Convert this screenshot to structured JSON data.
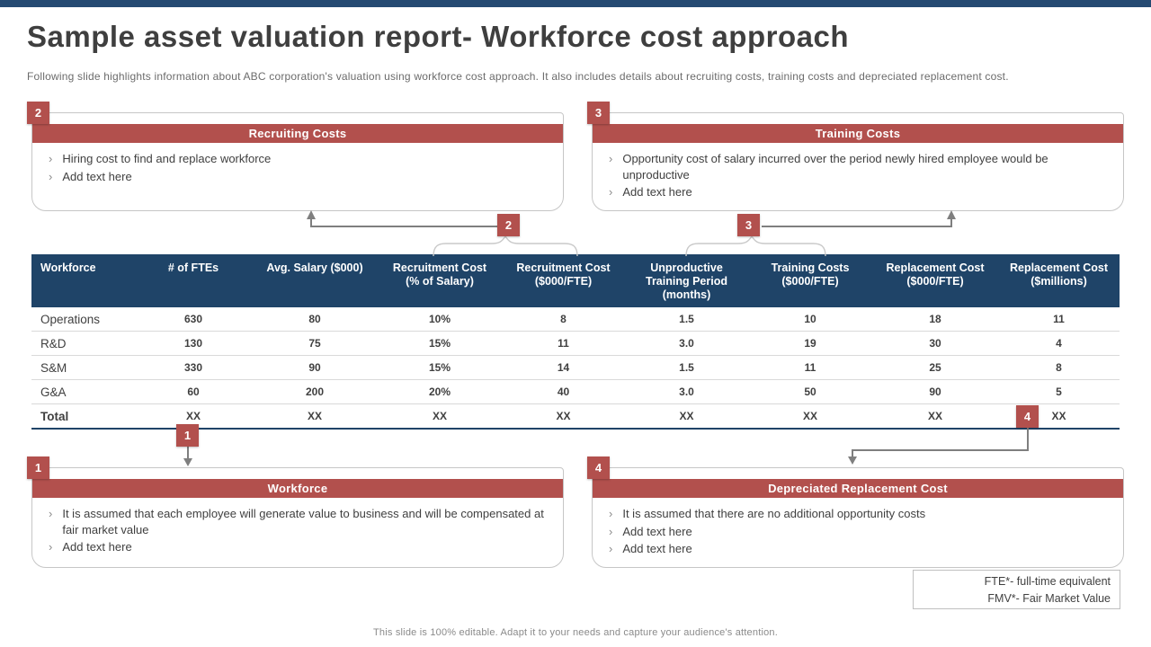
{
  "slide": {
    "title": "Sample asset valuation report- Workforce cost approach",
    "subtitle": "Following slide highlights information about ABC corporation's valuation using workforce cost approach. It also includes details about recruiting costs, training costs and depreciated replacement cost.",
    "footer": "This slide is 100% editable. Adapt it to your needs and capture your audience's attention."
  },
  "colors": {
    "navy": "#1f4468",
    "topbar_navy": "#254a72",
    "red": "#b2504d",
    "body_text": "#404040",
    "connector_gray": "#7f7f7f"
  },
  "bullet_char": "›",
  "callouts": [
    {
      "badge": "1",
      "title": "Workforce",
      "bullets": [
        "It is assumed that each employee will generate value to business and will be compensated at fair market value",
        "Add text here"
      ]
    },
    {
      "badge": "2",
      "title": "Recruiting Costs",
      "bullets": [
        "Hiring cost to find and replace workforce",
        "Add text here"
      ]
    },
    {
      "badge": "3",
      "title": "Training Costs",
      "bullets": [
        "Opportunity cost of salary incurred over the period newly hired employee would be unproductive",
        "Add text here"
      ]
    },
    {
      "badge": "4",
      "title": "Depreciated Replacement Cost",
      "bullets": [
        "It is assumed that there are no additional opportunity costs",
        "Add text here",
        "Add text here"
      ]
    }
  ],
  "connector_badges": {
    "workforce": "1",
    "recruiting": "2",
    "training": "3",
    "depreciated": "4"
  },
  "table": {
    "headers": [
      "Workforce",
      "# of FTEs",
      "Avg. Salary ($000)",
      "Recruitment Cost (% of Salary)",
      "Recruitment Cost ($000/FTE)",
      "Unproductive Training Period (months)",
      "Training Costs ($000/FTE)",
      "Replacement Cost ($000/FTE)",
      "Replacement Cost ($millions)"
    ],
    "rows": [
      [
        "Operations",
        "630",
        "80",
        "10%",
        "8",
        "1.5",
        "10",
        "18",
        "11"
      ],
      [
        "R&D",
        "130",
        "75",
        "15%",
        "11",
        "3.0",
        "19",
        "30",
        "4"
      ],
      [
        "S&M",
        "330",
        "90",
        "15%",
        "14",
        "1.5",
        "11",
        "25",
        "8"
      ],
      [
        "G&A",
        "60",
        "200",
        "20%",
        "40",
        "3.0",
        "50",
        "90",
        "5"
      ],
      [
        "Total",
        "XX",
        "XX",
        "XX",
        "XX",
        "XX",
        "XX",
        "XX",
        "XX"
      ]
    ]
  },
  "footnote": {
    "lines": [
      "FTE*- full-time equivalent",
      "FMV*- Fair Market Value"
    ]
  }
}
